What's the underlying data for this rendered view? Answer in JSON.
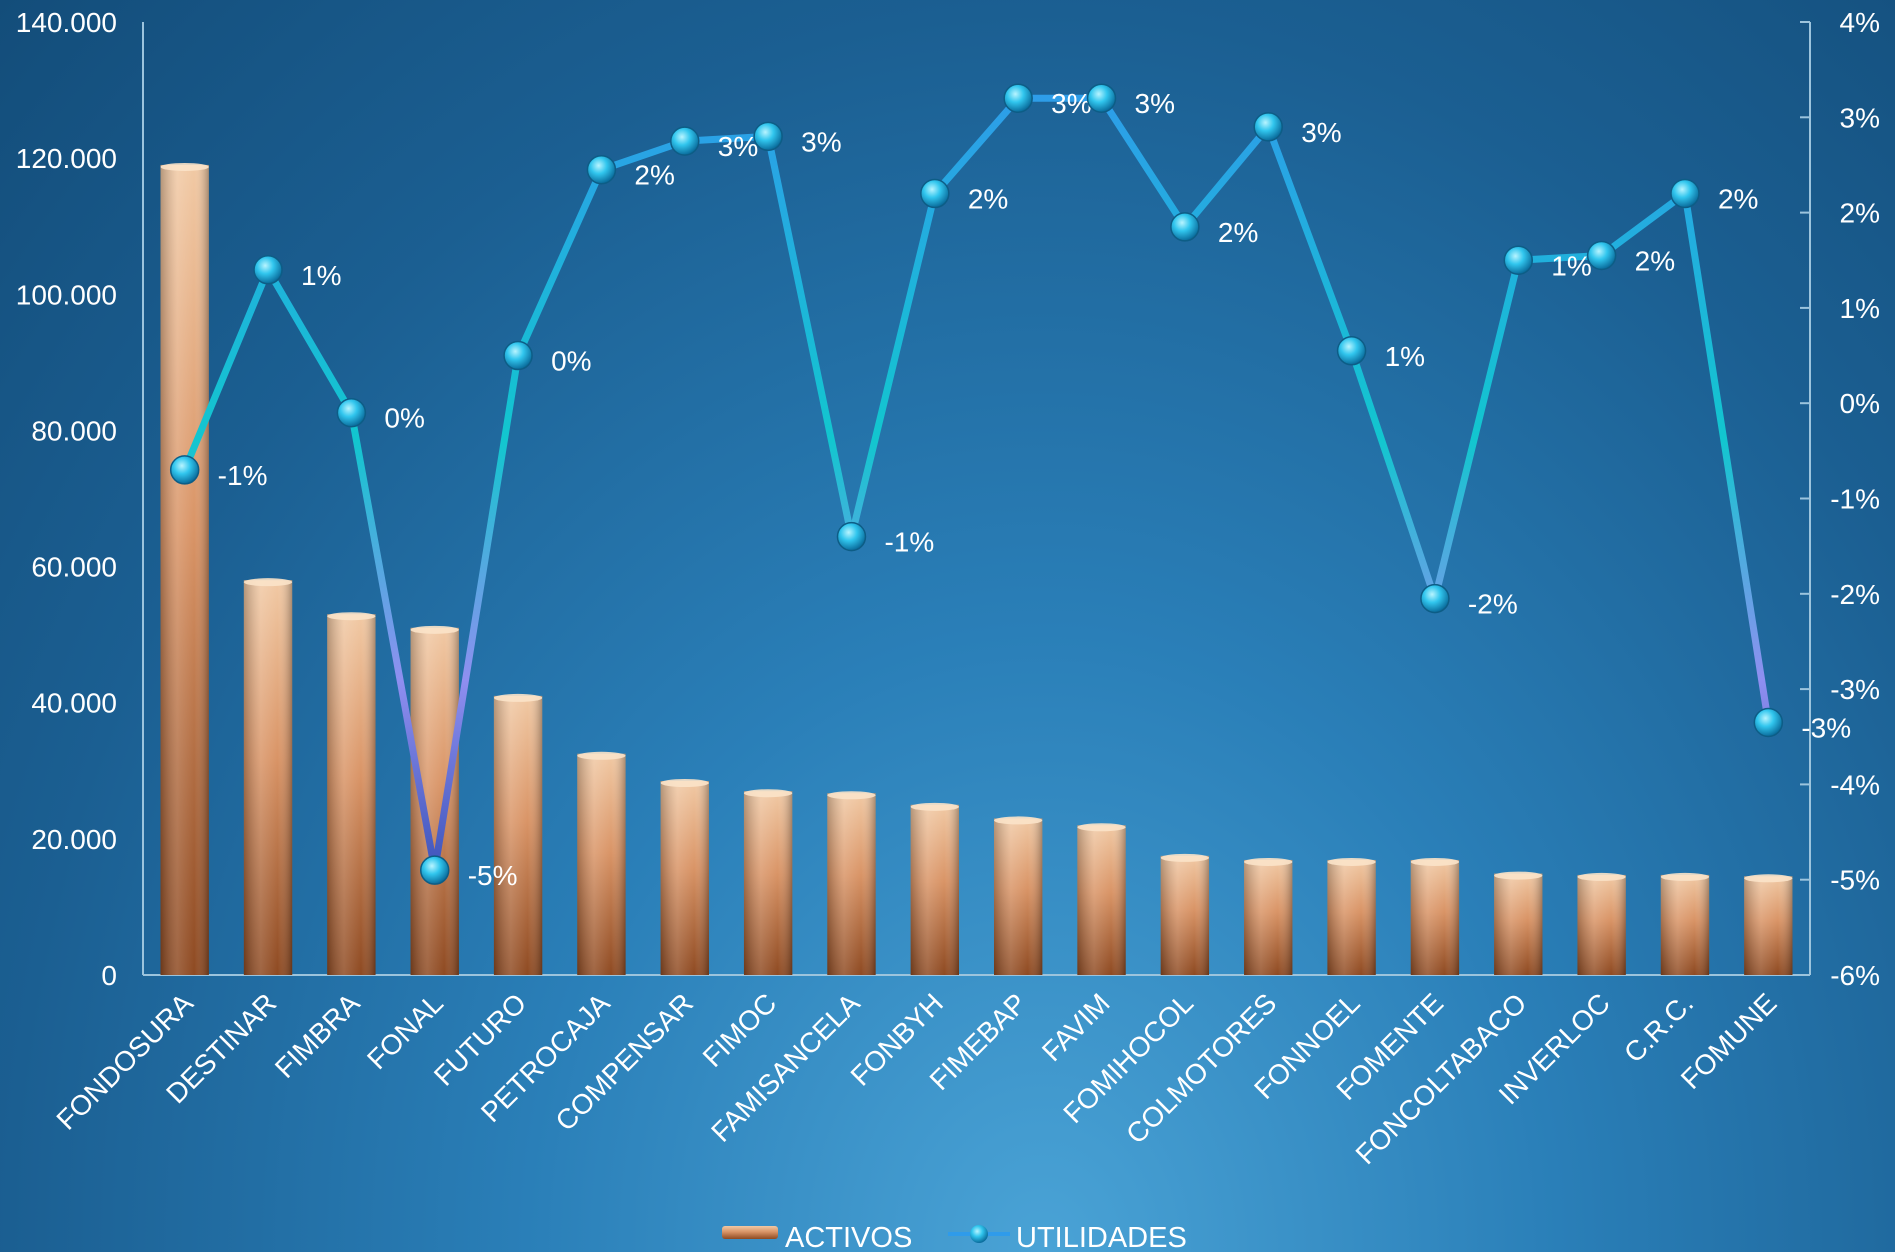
{
  "chart_data": {
    "type": "bar",
    "categories": [
      "FONDOSURA",
      "DESTINAR",
      "FIMBRA",
      "FONAL",
      "FUTURO",
      "PETROCAJA",
      "COMPENSAR",
      "FIMOC",
      "FAMISANCELA",
      "FONBYH",
      "FIMEBAP",
      "FAVIM",
      "FOMIHOCOL",
      "COLMOTORES",
      "FONNOEL",
      "FOMENTE",
      "FONCOLTABACO",
      "INVERLOC",
      "C.R.C.",
      "FOMUNE"
    ],
    "series": [
      {
        "name": "ACTIVOS",
        "type": "bar",
        "axis": "left",
        "values": [
          119000,
          58000,
          53000,
          51000,
          41000,
          32500,
          28500,
          27000,
          26700,
          25000,
          23000,
          22000,
          17500,
          16900,
          16900,
          16900,
          14900,
          14700,
          14700,
          14500
        ]
      },
      {
        "name": "UTILIDADES",
        "type": "line",
        "axis": "right",
        "values": [
          -0.7,
          1.4,
          -0.1,
          -4.9,
          0.5,
          2.45,
          2.75,
          2.8,
          -1.4,
          2.2,
          3.2,
          3.2,
          1.85,
          2.9,
          0.55,
          -2.05,
          1.5,
          1.55,
          2.2,
          -3.35
        ],
        "labels": [
          "-1%",
          "1%",
          "0%",
          "-5%",
          "0%",
          "2%",
          "3%",
          "3%",
          "-1%",
          "2%",
          "3%",
          "3%",
          "2%",
          "3%",
          "1%",
          "-2%",
          "1%",
          "2%",
          "2%",
          "-3%"
        ]
      }
    ],
    "y_left": {
      "range": [
        0,
        140000
      ],
      "ticks": [
        0,
        20000,
        40000,
        60000,
        80000,
        100000,
        120000,
        140000
      ],
      "tick_labels": [
        "0",
        "20.000",
        "40.000",
        "60.000",
        "80.000",
        "100.000",
        "120.000",
        "140.000"
      ]
    },
    "y_right": {
      "range": [
        -6,
        4
      ],
      "ticks": [
        -6,
        -5,
        -4,
        -3,
        -2,
        -1,
        0,
        1,
        2,
        3,
        4
      ],
      "tick_labels": [
        "-6%",
        "-5%",
        "-4%",
        "-3%",
        "-2%",
        "-1%",
        "0%",
        "1%",
        "2%",
        "3%",
        "4%"
      ]
    },
    "legend": {
      "position": "bottom-center",
      "items": [
        "ACTIVOS",
        "UTILIDADES"
      ]
    },
    "grid": false,
    "colors": {
      "bar": "#c8784a",
      "line_high": "#2f9bea",
      "line_mid": "#12c6cf",
      "line_low": "#8f8ff0",
      "marker": "#31c6ee"
    }
  }
}
